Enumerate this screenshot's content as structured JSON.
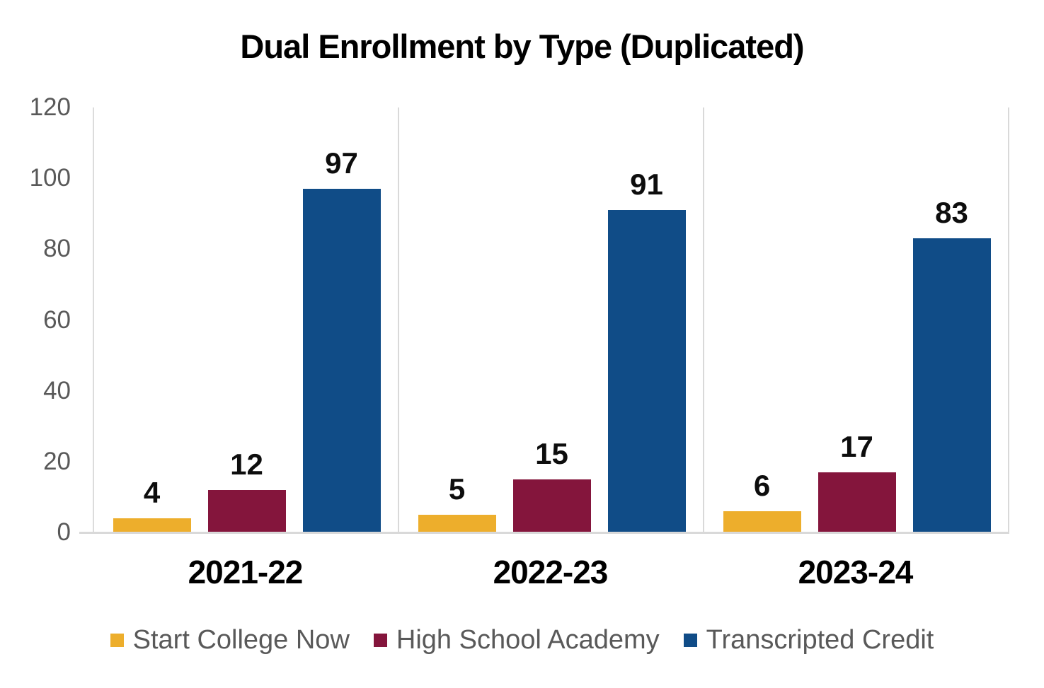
{
  "chart_data": {
    "type": "bar",
    "title": "Dual Enrollment by Type (Duplicated)",
    "categories": [
      "2021-22",
      "2022-23",
      "2023-24"
    ],
    "series": [
      {
        "name": "Start College Now",
        "color": "#EDAE2C",
        "values": [
          4,
          5,
          6
        ]
      },
      {
        "name": "High School Academy",
        "color": "#84153C",
        "values": [
          12,
          15,
          17
        ]
      },
      {
        "name": "Transcripted Credit",
        "color": "#104C87",
        "values": [
          97,
          91,
          83
        ]
      }
    ],
    "ylim": [
      0,
      120
    ],
    "yticks": [
      0,
      20,
      40,
      60,
      80,
      100,
      120
    ],
    "xlabel": "",
    "ylabel": "",
    "grid": "vertical category separators only",
    "legend_position": "bottom",
    "data_labels": true,
    "axis_text_color": "#595959",
    "axis_line_color": "#d9d9d9",
    "label_text_color": "#0d0d0d"
  }
}
